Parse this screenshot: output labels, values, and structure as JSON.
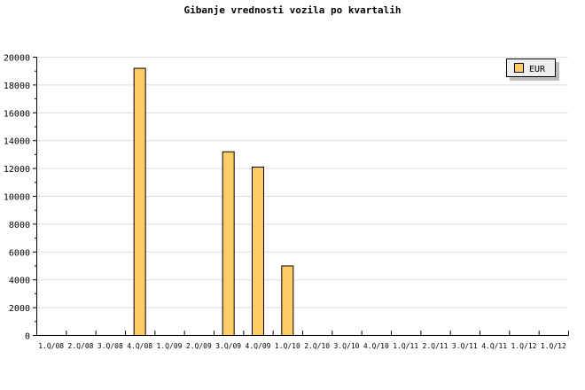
{
  "chart_data": {
    "type": "bar",
    "title": "Gibanje vrednosti vozila po kvartalih",
    "xlabel": "",
    "ylabel": "",
    "categories": [
      "1.Q/08",
      "2.Q/08",
      "3.Q/08",
      "4.Q/08",
      "1.Q/09",
      "2.Q/09",
      "3.Q/09",
      "4.Q/09",
      "1.Q/10",
      "2.Q/10",
      "3.Q/10",
      "4.Q/10",
      "1.Q/11",
      "2.Q/11",
      "3.Q/11",
      "4.Q/11",
      "1.Q/12",
      "1.Q/12"
    ],
    "series": [
      {
        "name": "EUR",
        "color": "#ffcc66",
        "values": [
          0,
          0,
          0,
          19200,
          0,
          0,
          13200,
          12100,
          5000,
          0,
          0,
          0,
          0,
          0,
          0,
          0,
          0,
          0
        ]
      }
    ],
    "ylim": [
      0,
      20000
    ],
    "yticks": [
      0,
      2000,
      4000,
      6000,
      8000,
      10000,
      12000,
      14000,
      16000,
      18000,
      20000
    ],
    "grid": true,
    "legend_position": "top-right"
  }
}
